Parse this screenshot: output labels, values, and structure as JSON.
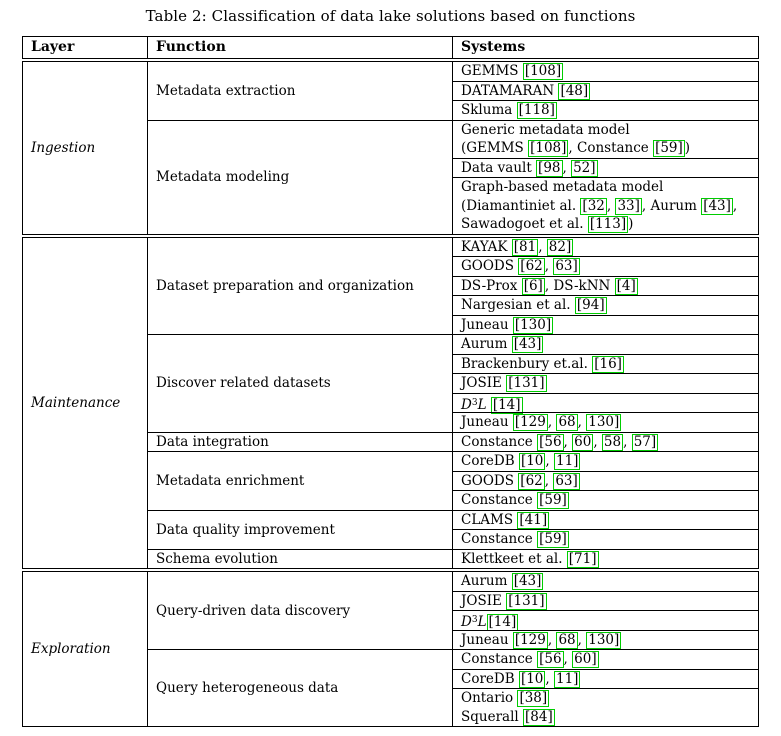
{
  "caption": "Table 2: Classification of data lake solutions based on functions",
  "header": {
    "columns": [
      "Layer",
      "Function",
      "Systems"
    ]
  },
  "colors": {
    "citation_link_green": "#00cc00",
    "text": "#000000",
    "rule": "#000000"
  },
  "sections": [
    {
      "layer": "Ingestion",
      "functions": [
        {
          "label": "Metadata extraction",
          "cells": [
            {
              "lines": [
                [
                  {
                    "t": "GEMMS "
                  },
                  {
                    "c": "108"
                  }
                ]
              ]
            },
            {
              "lines": [
                [
                  {
                    "t": "DATAMARAN "
                  },
                  {
                    "c": "48"
                  }
                ]
              ]
            },
            {
              "lines": [
                [
                  {
                    "t": "Skluma "
                  },
                  {
                    "c": "118"
                  }
                ]
              ]
            }
          ]
        },
        {
          "label": "Metadata modeling",
          "cells": [
            {
              "lines": [
                [
                  {
                    "t": "Generic metadata model"
                  }
                ],
                [
                  {
                    "t": "(GEMMS "
                  },
                  {
                    "c": "108"
                  },
                  {
                    "t": ", Constance "
                  },
                  {
                    "c": "59"
                  },
                  {
                    "t": ")"
                  }
                ]
              ]
            },
            {
              "lines": [
                [
                  {
                    "t": "Data vault "
                  },
                  {
                    "c": "98, 52"
                  }
                ]
              ]
            },
            {
              "lines": [
                [
                  {
                    "t": "Graph-based metadata model"
                  }
                ],
                [
                  {
                    "t": "(Diamantiniet al. "
                  },
                  {
                    "c": "32, 33"
                  },
                  {
                    "t": ", Aurum "
                  },
                  {
                    "c": "43"
                  },
                  {
                    "t": ","
                  }
                ],
                [
                  {
                    "t": "Sawadogoet et al. "
                  },
                  {
                    "c": "113"
                  },
                  {
                    "t": ")"
                  }
                ]
              ]
            }
          ]
        }
      ]
    },
    {
      "layer": "Maintenance",
      "functions": [
        {
          "label": "Dataset preparation and organization",
          "cells": [
            {
              "lines": [
                [
                  {
                    "t": "KAYAK "
                  },
                  {
                    "c": "81, 82"
                  }
                ]
              ]
            },
            {
              "lines": [
                [
                  {
                    "t": "GOODS "
                  },
                  {
                    "c": "62, 63"
                  }
                ]
              ]
            },
            {
              "lines": [
                [
                  {
                    "t": "DS-Prox "
                  },
                  {
                    "c": "6"
                  },
                  {
                    "t": ", DS-kNN "
                  },
                  {
                    "c": "4"
                  }
                ]
              ]
            },
            {
              "lines": [
                [
                  {
                    "t": "Nargesian et al. "
                  },
                  {
                    "c": "94"
                  }
                ]
              ]
            },
            {
              "lines": [
                [
                  {
                    "t": "Juneau "
                  },
                  {
                    "c": "130"
                  }
                ]
              ]
            }
          ]
        },
        {
          "label": "Discover related datasets",
          "cells": [
            {
              "lines": [
                [
                  {
                    "t": "Aurum "
                  },
                  {
                    "c": "43"
                  }
                ]
              ]
            },
            {
              "lines": [
                [
                  {
                    "t": "Brackenbury et.al. "
                  },
                  {
                    "c": "16"
                  }
                ]
              ]
            },
            {
              "lines": [
                [
                  {
                    "t": "JOSIE "
                  },
                  {
                    "c": "131"
                  }
                ]
              ]
            },
            {
              "lines": [
                [
                  {
                    "i": "D"
                  },
                  {
                    "sup": "3"
                  },
                  {
                    "i": "L"
                  },
                  {
                    "t": " "
                  },
                  {
                    "c": "14"
                  }
                ]
              ]
            },
            {
              "lines": [
                [
                  {
                    "t": "Juneau "
                  },
                  {
                    "c": "129, 68, 130"
                  }
                ]
              ]
            }
          ]
        },
        {
          "label": "Data integration",
          "cells": [
            {
              "lines": [
                [
                  {
                    "t": "Constance "
                  },
                  {
                    "c": "56, 60, 58, 57"
                  }
                ]
              ]
            }
          ]
        },
        {
          "label": "Metadata enrichment",
          "cells": [
            {
              "lines": [
                [
                  {
                    "t": "CoreDB "
                  },
                  {
                    "c": "10, 11"
                  }
                ]
              ]
            },
            {
              "lines": [
                [
                  {
                    "t": "GOODS "
                  },
                  {
                    "c": "62, 63"
                  }
                ]
              ]
            },
            {
              "lines": [
                [
                  {
                    "t": "Constance "
                  },
                  {
                    "c": "59"
                  }
                ]
              ]
            }
          ]
        },
        {
          "label": "Data quality improvement",
          "cells": [
            {
              "lines": [
                [
                  {
                    "t": "CLAMS "
                  },
                  {
                    "c": "41"
                  }
                ]
              ]
            },
            {
              "lines": [
                [
                  {
                    "t": "Constance "
                  },
                  {
                    "c": "59"
                  }
                ]
              ]
            }
          ]
        },
        {
          "label": "Schema evolution",
          "cells": [
            {
              "lines": [
                [
                  {
                    "t": "Klettkeet et al. "
                  },
                  {
                    "c": "71"
                  }
                ]
              ]
            }
          ]
        }
      ]
    },
    {
      "layer": "Exploration",
      "functions": [
        {
          "label": "Query-driven data discovery",
          "cells": [
            {
              "lines": [
                [
                  {
                    "t": "Aurum "
                  },
                  {
                    "c": "43"
                  }
                ]
              ]
            },
            {
              "lines": [
                [
                  {
                    "t": "JOSIE "
                  },
                  {
                    "c": "131"
                  }
                ]
              ]
            },
            {
              "lines": [
                [
                  {
                    "i": "D"
                  },
                  {
                    "sup": "3"
                  },
                  {
                    "i": "L"
                  },
                  {
                    "c": "14"
                  }
                ]
              ]
            },
            {
              "lines": [
                [
                  {
                    "t": "Juneau "
                  },
                  {
                    "c": "129, 68, 130"
                  }
                ]
              ]
            }
          ]
        },
        {
          "label": "Query heterogeneous data",
          "cells": [
            {
              "lines": [
                [
                  {
                    "t": "Constance "
                  },
                  {
                    "c": "56, 60"
                  }
                ]
              ]
            },
            {
              "lines": [
                [
                  {
                    "t": "CoreDB "
                  },
                  {
                    "c": "10, 11"
                  }
                ]
              ]
            },
            {
              "lines": [
                [
                  {
                    "t": "Ontario "
                  },
                  {
                    "c": "38"
                  }
                ],
                [
                  {
                    "t": "Squerall "
                  },
                  {
                    "c": "84"
                  }
                ]
              ]
            }
          ]
        }
      ]
    }
  ]
}
